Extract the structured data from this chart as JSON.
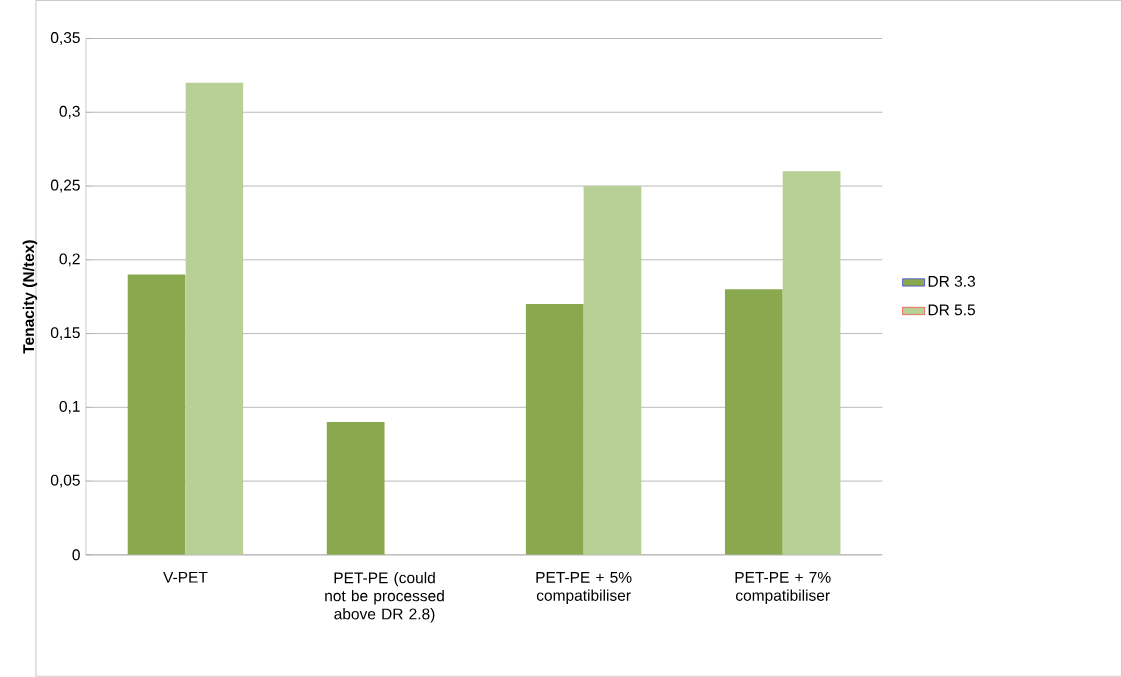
{
  "chart_data": {
    "type": "bar",
    "ylabel": "Tenacity (N/tex)",
    "categories": [
      "V-PET",
      "PET-PE (could not be processed above DR 2.8)",
      "PET-PE + 5% compatibiliser",
      "PET-PE + 7% compatibiliser"
    ],
    "series": [
      {
        "name": "DR 3.3",
        "color": "#8aa84e",
        "values": [
          0.19,
          0.09,
          0.17,
          0.18
        ]
      },
      {
        "name": "DR 5.5",
        "color": "#b8cf95",
        "values": [
          0.32,
          null,
          0.25,
          0.26
        ]
      }
    ],
    "ylim": [
      0,
      0.35
    ],
    "yticks": [
      0,
      {
        "value": 0.05,
        "label": "0,05"
      },
      {
        "value": 0.1,
        "label": "0,1"
      },
      {
        "value": 0.15,
        "label": "0,15"
      },
      {
        "value": 0.2,
        "label": "0,2"
      },
      {
        "value": 0.25,
        "label": "0,25"
      },
      {
        "value": 0.3,
        "label": "0,3"
      },
      {
        "value": 0.35,
        "label": "0,35"
      }
    ],
    "grid": "y",
    "legend": "right"
  }
}
